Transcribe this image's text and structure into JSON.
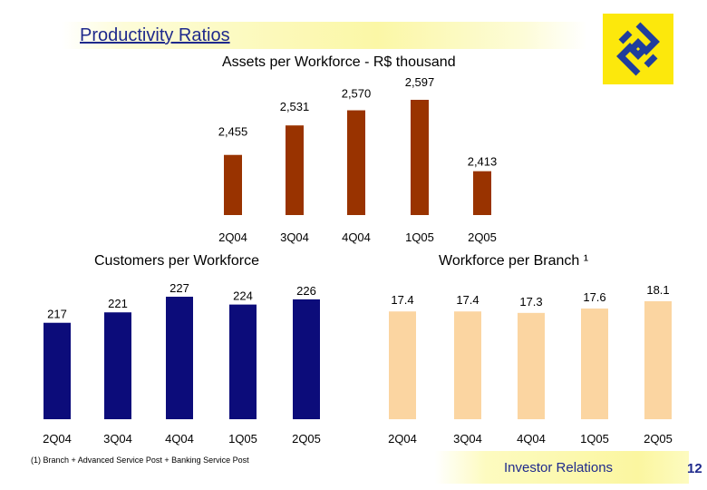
{
  "header": {
    "title": "Productivity Ratios"
  },
  "footer": {
    "footnote": "(1) Branch + Advanced Service Post + Banking Service Post",
    "investor_relations": "Investor Relations",
    "page_number": "12"
  },
  "colors": {
    "assets": "#993300",
    "customers": "#0c0c7a",
    "workforce": "#fbd5a1",
    "accent": "#1f2a8c",
    "logo_bg": "#fce80c"
  },
  "chart_data": [
    {
      "type": "bar",
      "title": "Assets per Workforce - R$ thousand",
      "categories": [
        "2Q04",
        "3Q04",
        "4Q04",
        "1Q05",
        "2Q05"
      ],
      "values": [
        2455,
        2531,
        2570,
        2597,
        2413
      ],
      "data_labels": [
        "2,455",
        "2,531",
        "2,570",
        "2,597",
        "2,413"
      ],
      "color": "#993300"
    },
    {
      "type": "bar",
      "title": "Customers per Workforce",
      "categories": [
        "2Q04",
        "3Q04",
        "4Q04",
        "1Q05",
        "2Q05"
      ],
      "values": [
        217,
        221,
        227,
        224,
        226
      ],
      "data_labels": [
        "217",
        "221",
        "227",
        "224",
        "226"
      ],
      "color": "#0c0c7a"
    },
    {
      "type": "bar",
      "title": "Workforce per Branch ¹",
      "categories": [
        "2Q04",
        "3Q04",
        "4Q04",
        "1Q05",
        "2Q05"
      ],
      "values": [
        17.4,
        17.4,
        17.3,
        17.6,
        18.1
      ],
      "data_labels": [
        "17.4",
        "17.4",
        "17.3",
        "17.6",
        "18.1"
      ],
      "color": "#fbd5a1"
    }
  ]
}
